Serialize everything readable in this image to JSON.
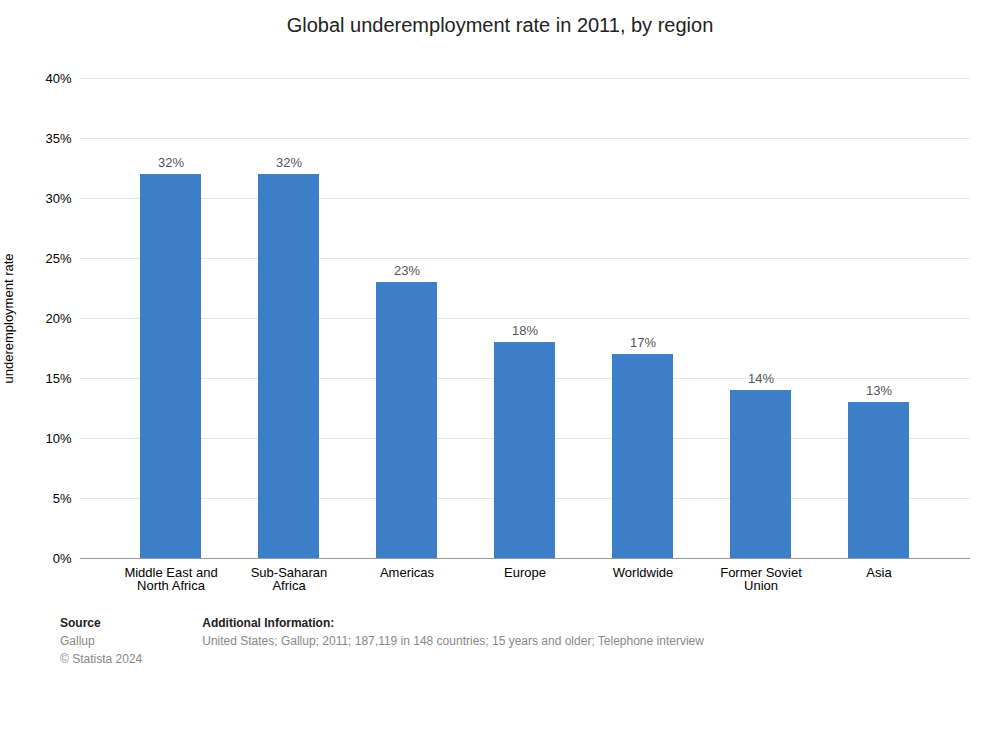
{
  "chart_data": {
    "type": "bar",
    "title": "Global underemployment rate in 2011, by region",
    "categories": [
      "Middle East and\nNorth Africa",
      "Sub-Saharan\nAfrica",
      "Americas",
      "Europe",
      "Worldwide",
      "Former Soviet\nUnion",
      "Asia"
    ],
    "values": [
      32,
      32,
      23,
      18,
      17,
      14,
      13
    ],
    "value_labels": [
      "32%",
      "32%",
      "23%",
      "18%",
      "17%",
      "14%",
      "13%"
    ],
    "data_labels": true,
    "color": "#3d7ec9",
    "ylabel": "underemployment rate",
    "ylim": [
      0,
      40
    ],
    "yticks": [
      {
        "value": 0,
        "label": "0%"
      },
      {
        "value": 5,
        "label": "5%"
      },
      {
        "value": 10,
        "label": "10%"
      },
      {
        "value": 15,
        "label": "15%"
      },
      {
        "value": 20,
        "label": "20%"
      },
      {
        "value": 25,
        "label": "25%"
      },
      {
        "value": 30,
        "label": "30%"
      },
      {
        "value": 35,
        "label": "35%"
      },
      {
        "value": 40,
        "label": "40%"
      }
    ],
    "grid": true,
    "annotations": [
      [
        "Source",
        "Gallup",
        "© Statista 2024"
      ],
      [
        "Additional Information:",
        "United States; Gallup; 2011; 187,119 in 148 countries; 15 years and older; Telephone interview"
      ]
    ]
  }
}
